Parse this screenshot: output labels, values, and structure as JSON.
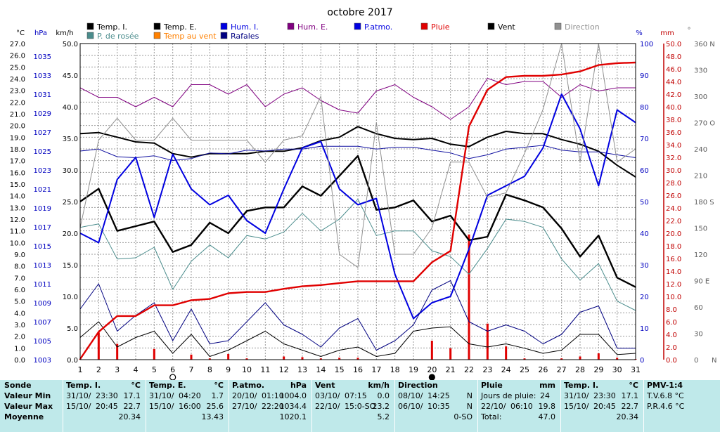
{
  "colors": {
    "temp_i": "#000000",
    "temp_e": "#000000",
    "hum_i": "#0000e0",
    "hum_e": "#800080",
    "patmo": "#1010a0",
    "pluie": "#e00000",
    "vent": "#000000",
    "direction": "#909090",
    "rosee": "#4a8c8c",
    "summary_bg": "#bfe9ea"
  },
  "chart_data": {
    "type": "line",
    "title": "octobre 2017",
    "legend": [
      {
        "label": "Temp. I.",
        "color": "#000000"
      },
      {
        "label": "Temp. E.",
        "color": "#000000"
      },
      {
        "label": "Hum. I.",
        "color": "#0000e0"
      },
      {
        "label": "Hum. E.",
        "color": "#800080"
      },
      {
        "label": "P.atmo.",
        "color": "#0000e0"
      },
      {
        "label": "Pluie",
        "color": "#e00000"
      },
      {
        "label": "Vent",
        "color": "#000000"
      },
      {
        "label": "Direction",
        "color": "#909090"
      },
      {
        "label": "P. de rosée",
        "color": "#4a8c8c"
      },
      {
        "label": "Temp au vent",
        "color": "#ff8000"
      },
      {
        "label": "Rafales",
        "color": "#000080"
      }
    ],
    "x_days": [
      1,
      2,
      3,
      4,
      5,
      6,
      7,
      8,
      9,
      10,
      11,
      12,
      13,
      14,
      15,
      16,
      17,
      18,
      19,
      20,
      21,
      22,
      23,
      24,
      25,
      26,
      27,
      28,
      29,
      30,
      31
    ],
    "axis_units": {
      "temp": "°C",
      "pressure": "hPa",
      "wind": "km/h",
      "humidity": "%",
      "rain": "mm",
      "direction": "°"
    },
    "temp_ticks": [
      "0.0",
      "1.0",
      "2.0",
      "3.0",
      "4.0",
      "5.0",
      "6.0",
      "7.0",
      "8.0",
      "9.0",
      "10.0",
      "11.0",
      "12.0",
      "13.0",
      "14.0",
      "15.0",
      "16.0",
      "17.0",
      "18.0",
      "19.0",
      "20.0",
      "21.0",
      "22.0",
      "23.0",
      "24.0",
      "25.0",
      "26.0",
      "27.0"
    ],
    "pressure_ticks": [
      "1003",
      "1005",
      "1007",
      "1009",
      "1011",
      "1013",
      "1015",
      "1017",
      "1019",
      "1021",
      "1023",
      "1025",
      "1027",
      "1029",
      "1031",
      "1033",
      "1035"
    ],
    "wind_ticks": [
      "0.0",
      "5.0",
      "10.0",
      "15.0",
      "20.0",
      "25.0",
      "30.0",
      "35.0",
      "40.0",
      "45.0",
      "50.0"
    ],
    "hum_ticks": [
      "0",
      "10",
      "20",
      "30",
      "40",
      "50",
      "60",
      "70",
      "80",
      "90",
      "100"
    ],
    "rain_ticks": [
      "0.0",
      "2.0",
      "4.0",
      "6.0",
      "8.0",
      "10.0",
      "12.0",
      "14.0",
      "16.0",
      "18.0",
      "20.0",
      "22.0",
      "24.0",
      "26.0",
      "28.0",
      "30.0",
      "32.0",
      "34.0",
      "36.0",
      "38.0",
      "40.0",
      "42.0",
      "44.0",
      "46.0",
      "48.0",
      "50.0"
    ],
    "dir_ticks": [
      {
        "v": 0,
        "t": "0"
      },
      {
        "v": 30,
        "t": "30"
      },
      {
        "v": 60,
        "t": "60"
      },
      {
        "v": 90,
        "t": "90 E"
      },
      {
        "v": 120,
        "t": "120"
      },
      {
        "v": 150,
        "t": "150"
      },
      {
        "v": 180,
        "t": "180 S"
      },
      {
        "v": 210,
        "t": "210"
      },
      {
        "v": 240,
        "t": "240"
      },
      {
        "v": 270,
        "t": "270 O"
      },
      {
        "v": 300,
        "t": "300"
      },
      {
        "v": 330,
        "t": "330"
      },
      {
        "v": 360,
        "t": "360 N"
      }
    ],
    "dir_bottom_label": "N",
    "series": [
      {
        "name": "Temp. E.",
        "axis": "temp",
        "color": "#000000",
        "width": 2.4,
        "values": [
          13.5,
          14.6,
          11.0,
          11.4,
          11.8,
          9.2,
          9.8,
          11.7,
          10.8,
          12.7,
          13.0,
          13.0,
          14.8,
          14.0,
          15.7,
          17.4,
          12.8,
          13.0,
          13.6,
          11.8,
          12.3,
          10.2,
          10.5,
          14.1,
          13.6,
          13.0,
          11.2,
          8.8,
          10.6,
          7.0,
          6.2
        ]
      },
      {
        "name": "Temp. I.",
        "axis": "temp",
        "color": "#000000",
        "width": 2.0,
        "values": [
          19.3,
          19.4,
          19.0,
          18.6,
          18.5,
          17.6,
          17.3,
          17.6,
          17.6,
          17.6,
          17.8,
          17.8,
          18.1,
          18.7,
          19.0,
          19.9,
          19.3,
          18.9,
          18.8,
          18.9,
          18.4,
          18.2,
          19.0,
          19.5,
          19.3,
          19.3,
          18.8,
          18.4,
          17.8,
          16.6,
          15.6
        ]
      },
      {
        "name": "P. de rosée",
        "axis": "temp",
        "color": "#4a8c8c",
        "width": 1.0,
        "values": [
          11.3,
          11.6,
          8.6,
          8.7,
          9.6,
          6.0,
          8.4,
          9.8,
          8.7,
          10.6,
          10.3,
          10.9,
          12.5,
          11.0,
          12.0,
          13.7,
          10.6,
          11.0,
          11.0,
          9.3,
          8.8,
          7.3,
          9.5,
          12.0,
          11.8,
          11.3,
          8.6,
          6.8,
          8.2,
          5.0,
          4.2
        ]
      },
      {
        "name": "Hum. E.",
        "axis": "hum",
        "color": "#800080",
        "width": 1.0,
        "values": [
          86,
          83,
          83,
          80,
          83,
          80,
          87,
          87,
          84,
          87,
          80,
          84,
          86,
          82,
          79,
          78,
          85,
          87,
          83,
          80,
          76,
          80,
          89,
          87,
          88,
          88,
          83,
          87,
          85,
          86,
          86
        ]
      },
      {
        "name": "P.atmo.",
        "axis": "pressure",
        "color": "#1010a0",
        "width": 1.0,
        "values": [
          1025.0,
          1025.2,
          1024.4,
          1024.3,
          1024.5,
          1024.0,
          1024.2,
          1024.8,
          1024.7,
          1025.1,
          1025.0,
          1025.2,
          1025.2,
          1025.5,
          1025.5,
          1025.5,
          1025.2,
          1025.4,
          1025.4,
          1025.1,
          1024.8,
          1024.2,
          1024.6,
          1025.2,
          1025.4,
          1025.6,
          1025.1,
          1024.9,
          1024.9,
          1024.6,
          1024.3
        ]
      },
      {
        "name": "Hum. I.",
        "axis": "hum",
        "color": "#0000e0",
        "width": 2.0,
        "values": [
          40,
          37,
          57,
          64,
          45,
          65,
          54,
          49,
          52,
          44,
          40,
          54,
          67,
          69,
          54,
          49,
          51,
          27,
          13,
          18,
          20,
          35,
          52,
          55,
          58,
          67,
          84,
          73,
          55,
          79,
          75
        ]
      },
      {
        "name": "Direction",
        "axis": "dir",
        "color": "#909090",
        "width": 1.0,
        "values": [
          150,
          250,
          275,
          250,
          250,
          275,
          250,
          250,
          250,
          250,
          225,
          250,
          255,
          300,
          120,
          105,
          270,
          120,
          120,
          150,
          225,
          225,
          185,
          190,
          235,
          285,
          360,
          225,
          360,
          225,
          240
        ]
      },
      {
        "name": "Vent",
        "axis": "wind",
        "color": "#000000",
        "width": 1.0,
        "values": [
          3.5,
          6.0,
          2.0,
          3.5,
          4.5,
          1.0,
          4.0,
          0.5,
          1.5,
          3.0,
          4.5,
          2.5,
          1.5,
          0.5,
          1.5,
          2.0,
          0.5,
          1.0,
          4.5,
          5.0,
          5.2,
          2.5,
          2.0,
          2.5,
          1.8,
          1.0,
          1.5,
          4.0,
          4.0,
          0.8,
          1.0
        ]
      },
      {
        "name": "Rafales",
        "axis": "wind",
        "color": "#000080",
        "width": 1.0,
        "values": [
          8.0,
          12.0,
          4.5,
          7.0,
          9.0,
          3.0,
          8.0,
          2.5,
          3.0,
          6.0,
          9.0,
          5.5,
          4.0,
          2.0,
          5.0,
          6.5,
          1.5,
          3.0,
          5.5,
          11.0,
          12.5,
          6.0,
          4.5,
          5.5,
          4.5,
          2.5,
          4.0,
          7.5,
          8.5,
          1.8,
          1.8
        ]
      }
    ],
    "rain_cumul": [
      0.1,
      4.4,
      6.9,
      6.9,
      8.6,
      8.6,
      9.4,
      9.6,
      10.5,
      10.7,
      10.7,
      11.2,
      11.6,
      11.8,
      12.1,
      12.4,
      12.4,
      12.4,
      12.4,
      15.4,
      17.2,
      36.9,
      42.7,
      44.7,
      44.9,
      44.9,
      45.1,
      45.6,
      46.6,
      46.9,
      47.0
    ],
    "rain_daily": [
      0.1,
      4.3,
      2.5,
      0,
      1.7,
      0,
      0.8,
      0.2,
      0.9,
      0.2,
      0,
      0.5,
      0.4,
      0.2,
      0.3,
      0.3,
      0,
      0,
      0,
      3.0,
      1.8,
      19.8,
      5.7,
      2.1,
      0.2,
      0,
      0.2,
      0.5,
      1.0,
      0.3,
      0.1
    ],
    "moon_phases": [
      {
        "day": 6,
        "phase": "empty"
      },
      {
        "day": 20,
        "phase": "full"
      }
    ]
  },
  "summary": {
    "rows": [
      "Sonde",
      "Valeur Min",
      "Valeur Max",
      "Moyenne"
    ],
    "sections": [
      {
        "title": "Temp. I.",
        "unit": "°C",
        "min": [
          "31/10/",
          "23:30",
          "17.1"
        ],
        "max": [
          "15/10/",
          "20:45",
          "22.7"
        ],
        "avg": "20.34"
      },
      {
        "title": "Temp. E.",
        "unit": "°C",
        "min": [
          "31/10/",
          "04:20",
          "1.7"
        ],
        "max": [
          "15/10/",
          "16:00",
          "25.6"
        ],
        "avg": "13.43"
      },
      {
        "title": "P.atmo.",
        "unit": "hPa",
        "min": [
          "20/10/",
          "01:10",
          "1004.0"
        ],
        "max": [
          "27/10/",
          "22:20",
          "1034.4"
        ],
        "avg": "1020.1"
      },
      {
        "title": "Vent",
        "unit": "km/h",
        "min": [
          "03/10/",
          "07:15",
          "0.0"
        ],
        "max": [
          "22/10/",
          "15:0-SO",
          "23.2"
        ],
        "avg": "5.2"
      },
      {
        "title": "Direction",
        "unit": "",
        "min": [
          "08/10/",
          "14:25",
          "N"
        ],
        "max": [
          "06/10/",
          "10:35",
          "N"
        ],
        "avg": "0-SO"
      },
      {
        "title": "Pluie",
        "unit": "mm",
        "min": [
          "Jours de pluie:",
          "24",
          ""
        ],
        "max": [
          "22/10/",
          "06:10",
          "19.8"
        ],
        "avg_label": "Total:",
        "avg": "47.0"
      },
      {
        "title": "Temp. I.",
        "unit": "°C",
        "min": [
          "31/10/",
          "23:30",
          "17.1"
        ],
        "max": [
          "15/10/",
          "20:45",
          "22.7"
        ],
        "avg": "20.34"
      }
    ],
    "pmv": {
      "title": "PMV-1:4",
      "line1": "T.V.6.8 °C",
      "line2": "P.R.4.6 °C"
    }
  }
}
